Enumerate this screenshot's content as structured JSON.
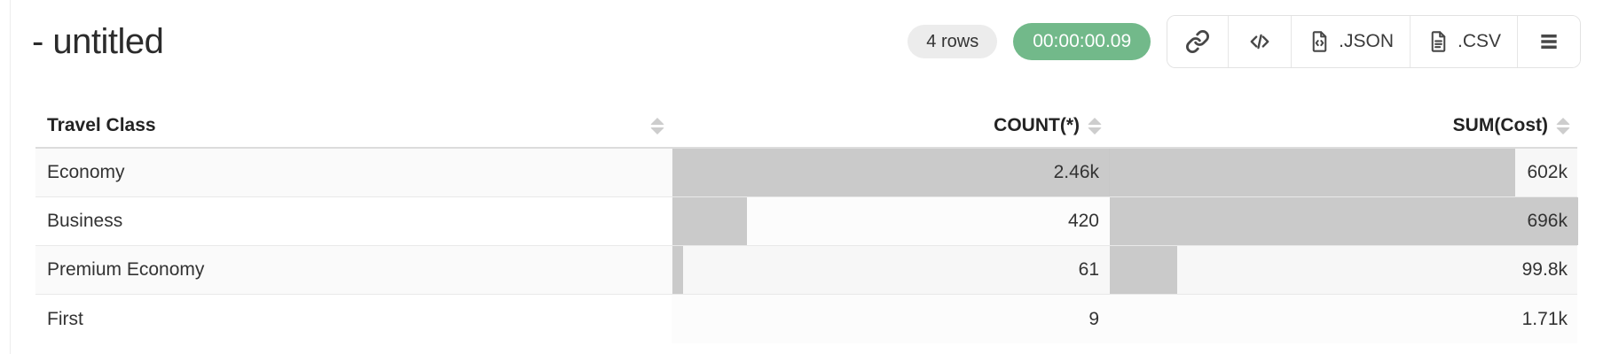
{
  "header": {
    "title": "- untitled",
    "rows_badge": "4 rows",
    "timer_badge": "00:00:00.09",
    "toolbar": {
      "json_label": ".JSON",
      "csv_label": ".CSV"
    }
  },
  "colors": {
    "timer_green": "#72b98a",
    "rows_badge_gray": "#ececec",
    "bar_gray": "#cacaca",
    "icon_gray": "#474747"
  },
  "table": {
    "columns": [
      {
        "label": "Travel Class",
        "align": "left"
      },
      {
        "label": "COUNT(*)",
        "align": "right"
      },
      {
        "label": "SUM(Cost)",
        "align": "right"
      }
    ],
    "rows": [
      {
        "travel_class": "Economy",
        "count_display": "2.46k",
        "count_value": 2460,
        "sum_display": "602k",
        "sum_value": 602000
      },
      {
        "travel_class": "Business",
        "count_display": "420",
        "count_value": 420,
        "sum_display": "696k",
        "sum_value": 696000
      },
      {
        "travel_class": "Premium Economy",
        "count_display": "61",
        "count_value": 61,
        "sum_display": "99.8k",
        "sum_value": 99800
      },
      {
        "travel_class": "First",
        "count_display": "9",
        "count_value": 9,
        "sum_display": "1.71k",
        "sum_value": 1710
      }
    ]
  }
}
